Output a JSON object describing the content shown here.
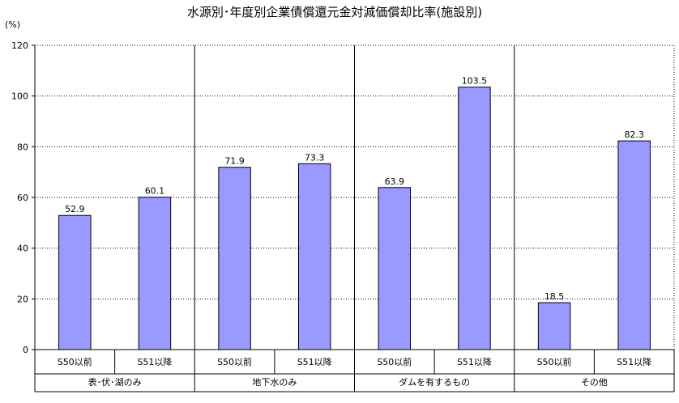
{
  "chart_data": {
    "type": "bar",
    "title": "水源別･年度別企業債償還元金対減価償却比率(施設別)",
    "ylabel": "(%)",
    "xlabel": "",
    "ylim": [
      0,
      120
    ],
    "yticks": [
      0,
      20,
      40,
      60,
      80,
      100,
      120
    ],
    "grid": true,
    "bar_color": "#9999ff",
    "groups": [
      {
        "name": "表･伏･湖のみ",
        "categories": [
          "S50以前",
          "S51以降"
        ],
        "values": [
          52.9,
          60.1
        ],
        "labels": [
          "52.9",
          "60.1"
        ]
      },
      {
        "name": "地下水のみ",
        "categories": [
          "S50以前",
          "S51以降"
        ],
        "values": [
          71.9,
          73.3
        ],
        "labels": [
          "71.9",
          "73.3"
        ]
      },
      {
        "name": "ダムを有するもの",
        "categories": [
          "S50以前",
          "S51以降"
        ],
        "values": [
          63.9,
          103.5
        ],
        "labels": [
          "63.9",
          "103.5"
        ]
      },
      {
        "name": "その他",
        "categories": [
          "S50以前",
          "S51以降"
        ],
        "values": [
          18.5,
          82.3
        ],
        "labels": [
          "18.5",
          "82.3"
        ]
      }
    ]
  }
}
